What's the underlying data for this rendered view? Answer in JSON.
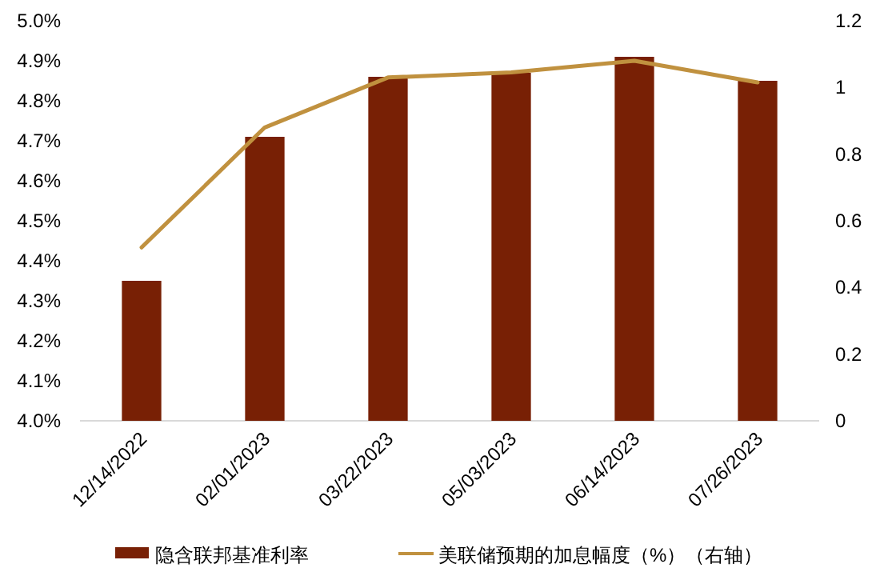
{
  "chart_data": {
    "type": "bar",
    "categories": [
      "12/14/2022",
      "02/01/2023",
      "03/22/2023",
      "05/03/2023",
      "06/14/2023",
      "07/26/2023"
    ],
    "series": [
      {
        "name": "隐含联邦基准利率",
        "color": "#782005",
        "values": [
          4.35,
          4.71,
          4.86,
          4.87,
          4.91,
          4.85
        ]
      },
      {
        "name": "美联储预期的加息幅度（%）（右轴）",
        "type": "line",
        "axis": "y2",
        "color": "#c0913f",
        "values": [
          0.52,
          0.88,
          1.03,
          1.045,
          1.08,
          1.015
        ]
      }
    ],
    "ylim": [
      4.0,
      5.0
    ],
    "yticks": [
      {
        "value": 4.0,
        "label": "4.0%"
      },
      {
        "value": 4.1,
        "label": "4.1%"
      },
      {
        "value": 4.2,
        "label": "4.2%"
      },
      {
        "value": 4.3,
        "label": "4.3%"
      },
      {
        "value": 4.4,
        "label": "4.4%"
      },
      {
        "value": 4.5,
        "label": "4.5%"
      },
      {
        "value": 4.6,
        "label": "4.6%"
      },
      {
        "value": 4.7,
        "label": "4.7%"
      },
      {
        "value": 4.8,
        "label": "4.8%"
      },
      {
        "value": 4.9,
        "label": "4.9%"
      },
      {
        "value": 5.0,
        "label": "5.0%"
      }
    ],
    "y2lim": [
      0,
      1.2
    ],
    "y2ticks": [
      0,
      0.2,
      0.4,
      0.6,
      0.8,
      1,
      1.2
    ],
    "grid": false,
    "legend": "bottom",
    "marker": "none",
    "line_style": "solid"
  }
}
